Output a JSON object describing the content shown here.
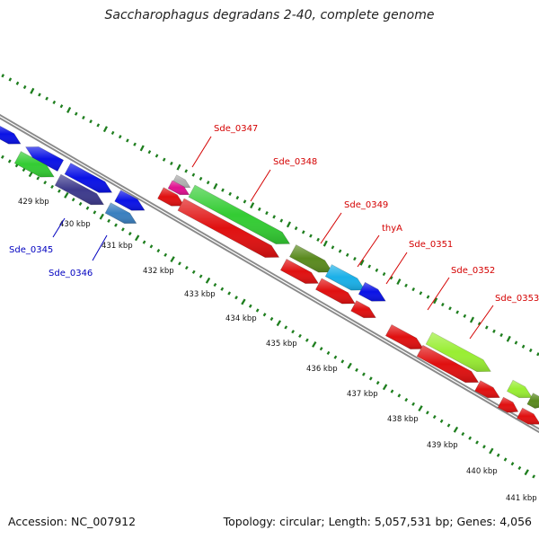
{
  "title": "Saccharophagus degradans 2-40, complete genome",
  "footer": {
    "accession": "Accession: NC_007912",
    "topology": "Topology: circular; Length: 5,057,531 bp; Genes: 4,056"
  },
  "colors": {
    "backbone": "#8a8a8a",
    "tick_green": "#1e7e1e",
    "label_red": "#d40000",
    "label_blue": "#0000c0"
  },
  "scale_labels": [
    "429 kbp",
    "430 kbp",
    "431 kbp",
    "432 kbp",
    "433 kbp",
    "434 kbp",
    "435 kbp",
    "436 kbp",
    "437 kbp",
    "438 kbp",
    "439 kbp",
    "440 kbp",
    "441 kbp"
  ],
  "gene_labels": [
    {
      "text": "Sde_0345",
      "color": "blue"
    },
    {
      "text": "Sde_0346",
      "color": "blue"
    },
    {
      "text": "Sde_0347",
      "color": "red"
    },
    {
      "text": "Sde_0348",
      "color": "red"
    },
    {
      "text": "Sde_0349",
      "color": "red"
    },
    {
      "text": "thyA",
      "color": "red"
    },
    {
      "text": "Sde_0351",
      "color": "red"
    },
    {
      "text": "Sde_0352",
      "color": "red"
    },
    {
      "text": "Sde_0353",
      "color": "red"
    }
  ]
}
